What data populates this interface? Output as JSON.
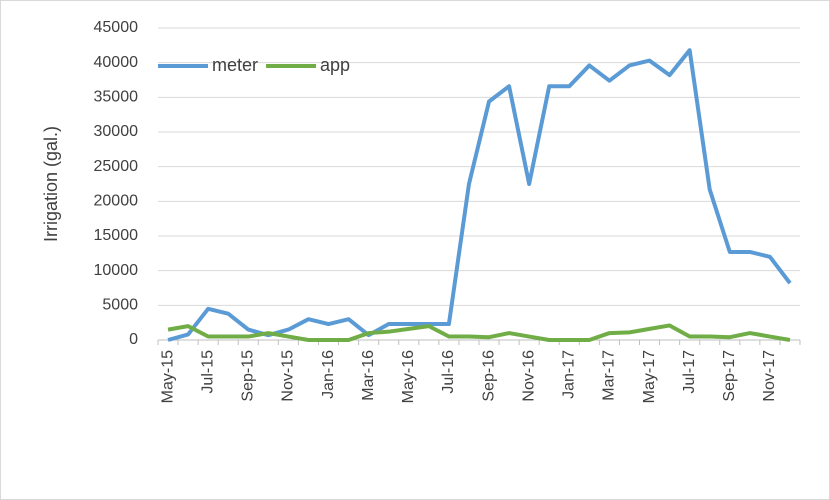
{
  "chart_data": {
    "type": "line",
    "y_label": "Irrigation (gal.)",
    "categories": [
      "May-15",
      null,
      "Jul-15",
      null,
      "Sep-15",
      null,
      "Nov-15",
      null,
      "Jan-16",
      null,
      "Mar-16",
      null,
      "May-16",
      null,
      "Jul-16",
      null,
      "Sep-16",
      null,
      "Nov-16",
      null,
      "Jan-17",
      null,
      "Mar-17",
      null,
      "May-17",
      null,
      "Jul-17",
      null,
      "Sep-17",
      null,
      "Nov-17",
      null
    ],
    "series": [
      {
        "name": "meter",
        "color": "#5b9bd5",
        "values": [
          0,
          800,
          4500,
          3800,
          1500,
          700,
          1500,
          3000,
          2300,
          3000,
          700,
          2300,
          2300,
          2300,
          2300,
          22500,
          34400,
          36600,
          22500,
          36600,
          36600,
          39600,
          37400,
          39600,
          40300,
          38200,
          41800,
          21700,
          12700,
          12700,
          12000,
          8200
        ]
      },
      {
        "name": "app",
        "color": "#70ad47",
        "values": [
          1500,
          2000,
          500,
          500,
          500,
          1000,
          500,
          0,
          0,
          0,
          1000,
          1200,
          1600,
          2000,
          500,
          500,
          400,
          1000,
          500,
          0,
          0,
          0,
          1000,
          1100,
          1600,
          2100,
          500,
          500,
          400,
          1000,
          500,
          0
        ]
      }
    ],
    "ylim": [
      0,
      45000
    ],
    "yticks": [
      0,
      5000,
      10000,
      15000,
      20000,
      25000,
      30000,
      35000,
      40000,
      45000
    ],
    "grid": true,
    "legend": "top-left"
  }
}
